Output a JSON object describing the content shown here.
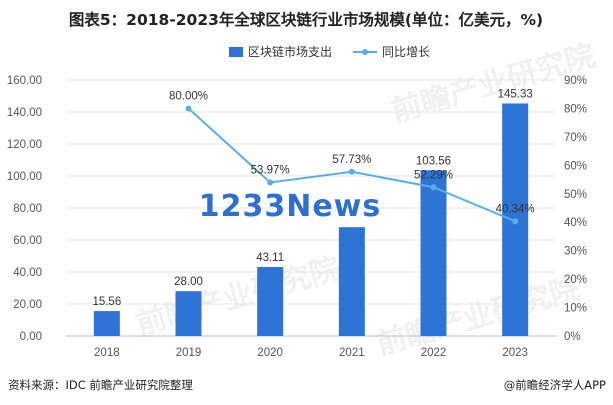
{
  "title": "图表5：2018-2023年全球区块链行业市场规模(单位：亿美元，%)",
  "source": "资料来源：IDC 前瞻产业研究院整理",
  "credit": "@前瞻经济学人APP",
  "watermark": "前瞻产业研究院",
  "overlay_text": "1233News",
  "colors": {
    "bar": "#2e74d6",
    "line": "#5aaee6",
    "grid": "#e6e6e6",
    "axis": "#bdbdbd"
  },
  "chart_data": {
    "type": "bar+line",
    "categories": [
      "2018",
      "2019",
      "2020",
      "2021",
      "2022",
      "2023"
    ],
    "series": [
      {
        "name": "区块链市场支出",
        "type": "bar",
        "axis": "left",
        "values": [
          15.56,
          28.0,
          43.11,
          68.0,
          103.56,
          145.33
        ],
        "labels": [
          "15.56",
          "28.00",
          "43.11",
          "",
          "103.56",
          "145.33"
        ]
      },
      {
        "name": "同比增长",
        "type": "line",
        "axis": "right",
        "x": [
          "2019",
          "2020",
          "2021",
          "2022",
          "2023"
        ],
        "values": [
          80.0,
          53.97,
          57.73,
          52.29,
          40.34
        ],
        "labels": [
          "80.00%",
          "53.97%",
          "57.73%",
          "52.29%",
          "40.34%"
        ]
      }
    ],
    "ylim_left": [
      0,
      160
    ],
    "left_ticks": [
      "0.00",
      "20.00",
      "40.00",
      "60.00",
      "80.00",
      "100.00",
      "120.00",
      "140.00",
      "160.00"
    ],
    "ylim_right": [
      0,
      90
    ],
    "right_ticks": [
      "0%",
      "10%",
      "20%",
      "30%",
      "40%",
      "50%",
      "60%",
      "70%",
      "80%",
      "90%"
    ],
    "legend_position": "top-center",
    "grid": "horizontal"
  }
}
